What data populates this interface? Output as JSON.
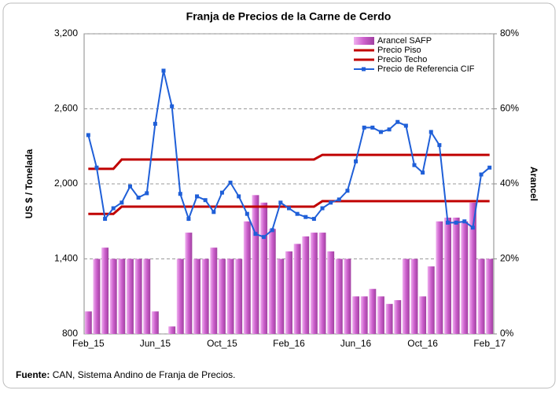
{
  "chart_data": {
    "type": "combo",
    "title": "Franja de Precios de la Carne de Cerdo",
    "y_label": "US $ / Tonelada",
    "y2_label": "Arancel",
    "categories": [
      "Feb_15",
      null,
      null,
      null,
      null,
      null,
      null,
      null,
      "Jun_15",
      null,
      null,
      null,
      null,
      null,
      null,
      null,
      "Oct_15",
      null,
      null,
      null,
      null,
      null,
      null,
      null,
      "Feb_16",
      null,
      null,
      null,
      null,
      null,
      null,
      null,
      "Jun_16",
      null,
      null,
      null,
      null,
      null,
      null,
      null,
      "Oct_16",
      null,
      null,
      null,
      null,
      null,
      null,
      null,
      "Feb_17"
    ],
    "ylim": [
      800,
      3200
    ],
    "yticks": [
      800,
      {
        "value": 1400,
        "label": "1,400"
      },
      {
        "value": 2000,
        "label": "2,000"
      },
      {
        "value": 2600,
        "label": "2,600"
      },
      {
        "value": 3200,
        "label": "3,200"
      }
    ],
    "y2lim": [
      0,
      80
    ],
    "y2ticks": [
      {
        "value": 0,
        "label": "0%"
      },
      {
        "value": 20,
        "label": "20%"
      },
      {
        "value": 40,
        "label": "40%"
      },
      {
        "value": 60,
        "label": "60%"
      },
      {
        "value": 80,
        "label": "80%"
      }
    ],
    "grid": true,
    "legend": "top-right",
    "series": [
      {
        "name": "Arancel SAFP",
        "type": "bar",
        "axis": "y2",
        "color": "#cc5fcc",
        "values": [
          6,
          20,
          23,
          20,
          20,
          20,
          20,
          20,
          6,
          0,
          2,
          20,
          27,
          20,
          20,
          23,
          20,
          20,
          20,
          30,
          37,
          35,
          28,
          20,
          22,
          24,
          26,
          27,
          27,
          22,
          20,
          20,
          10,
          10,
          12,
          10,
          8,
          9,
          20,
          20,
          10,
          18,
          30,
          31,
          31,
          30,
          35,
          20,
          20
        ]
      },
      {
        "name": "Precio Piso",
        "type": "line",
        "color": "#c00000",
        "values": [
          1760,
          1760,
          1760,
          1760,
          1818,
          1818,
          1818,
          1818,
          1818,
          1818,
          1818,
          1818,
          1818,
          1818,
          1818,
          1818,
          1818,
          1818,
          1818,
          1818,
          1818,
          1818,
          1818,
          1818,
          1818,
          1818,
          1818,
          1818,
          1862,
          1862,
          1862,
          1862,
          1862,
          1862,
          1862,
          1862,
          1862,
          1862,
          1862,
          1862,
          1862,
          1862,
          1862,
          1862,
          1862,
          1862,
          1862,
          1862,
          1862
        ]
      },
      {
        "name": "Precio Techo",
        "type": "line",
        "color": "#c00000",
        "values": [
          2120,
          2120,
          2120,
          2120,
          2195,
          2195,
          2195,
          2195,
          2195,
          2195,
          2195,
          2195,
          2195,
          2195,
          2195,
          2195,
          2195,
          2195,
          2195,
          2195,
          2195,
          2195,
          2195,
          2195,
          2195,
          2195,
          2195,
          2195,
          2232,
          2232,
          2232,
          2232,
          2232,
          2232,
          2232,
          2232,
          2232,
          2232,
          2232,
          2232,
          2232,
          2232,
          2232,
          2232,
          2232,
          2232,
          2232,
          2232,
          2232
        ]
      },
      {
        "name": "Precio de Referencia CIF",
        "type": "line-marker",
        "color": "#1f5fd8",
        "values": [
          2390,
          2130,
          1720,
          1805,
          1850,
          1980,
          1890,
          1925,
          2480,
          2905,
          2620,
          1920,
          1720,
          1900,
          1870,
          1775,
          1930,
          2010,
          1900,
          1760,
          1600,
          1575,
          1630,
          1850,
          1805,
          1760,
          1735,
          1720,
          1805,
          1850,
          1875,
          1945,
          2180,
          2450,
          2450,
          2415,
          2435,
          2495,
          2465,
          2150,
          2090,
          2415,
          2310,
          1690,
          1690,
          1700,
          1650,
          2075,
          2130
        ]
      }
    ],
    "source_label": "Fuente:",
    "source_text": "CAN, Sistema Andino de Franja de Precios."
  }
}
